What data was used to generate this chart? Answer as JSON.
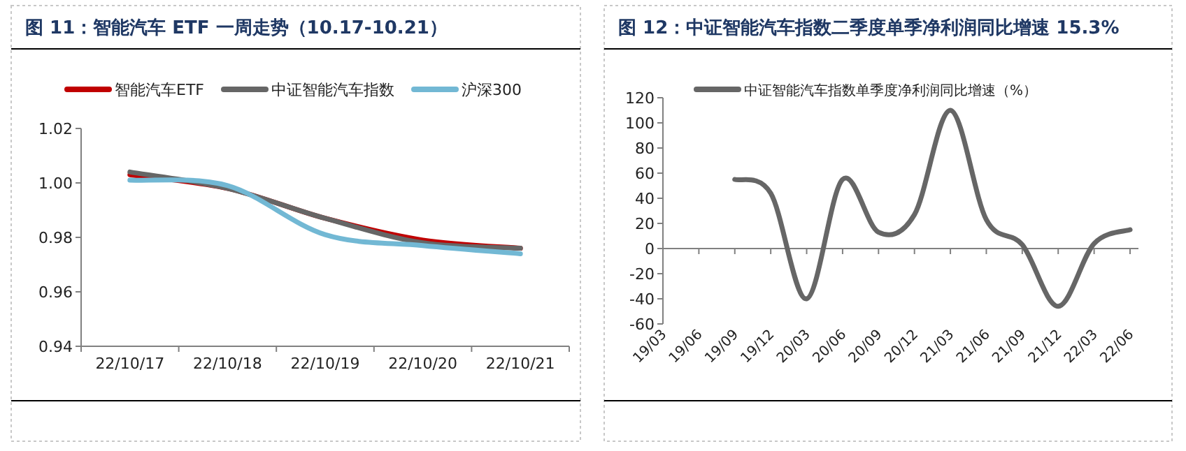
{
  "chart_data": [
    {
      "type": "line",
      "title": "图 11：智能汽车 ETF 一周走势（10.17-10.21）",
      "categories": [
        "22/10/17",
        "22/10/18",
        "22/10/19",
        "22/10/20",
        "22/10/21"
      ],
      "series": [
        {
          "name": "智能汽车ETF",
          "color": "#c00000",
          "values": [
            1.003,
            0.998,
            0.987,
            0.979,
            0.976
          ]
        },
        {
          "name": "中证智能汽车指数",
          "color": "#666666",
          "values": [
            1.004,
            0.998,
            0.987,
            0.978,
            0.976
          ]
        },
        {
          "name": "沪深300",
          "color": "#72b8d4",
          "values": [
            1.001,
            0.999,
            0.981,
            0.977,
            0.974
          ]
        }
      ],
      "ylim": [
        0.94,
        1.02
      ],
      "yticks": [
        {
          "value": 0.94,
          "label": "0.94"
        },
        {
          "value": 0.96,
          "label": "0.96"
        },
        {
          "value": 0.98,
          "label": "0.98"
        },
        {
          "value": 1.0,
          "label": "1.00"
        },
        {
          "value": 1.02,
          "label": "1.02"
        }
      ],
      "grid": false,
      "legend": "top",
      "marker": "none",
      "line_style": "solid"
    },
    {
      "type": "line",
      "title": "图 12：中证智能汽车指数二季度单季净利润同比增速 15.3%",
      "categories": [
        "19/03",
        "19/06",
        "19/09",
        "19/12",
        "20/03",
        "20/06",
        "20/09",
        "20/12",
        "21/03",
        "21/06",
        "21/09",
        "21/12",
        "22/03",
        "22/06"
      ],
      "series": [
        {
          "name": "中证智能汽车指数单季度净利润同比增速（%）",
          "color": "#666666",
          "values": [
            null,
            null,
            55,
            44,
            -40,
            55,
            13,
            27,
            110,
            23,
            3,
            -46,
            4,
            15
          ]
        }
      ],
      "ylim": [
        -60,
        120
      ],
      "yticks": [
        -60,
        -40,
        -20,
        0,
        20,
        40,
        60,
        80,
        100,
        120
      ],
      "legend": "top",
      "marker": "none",
      "line_style": "solid"
    }
  ]
}
